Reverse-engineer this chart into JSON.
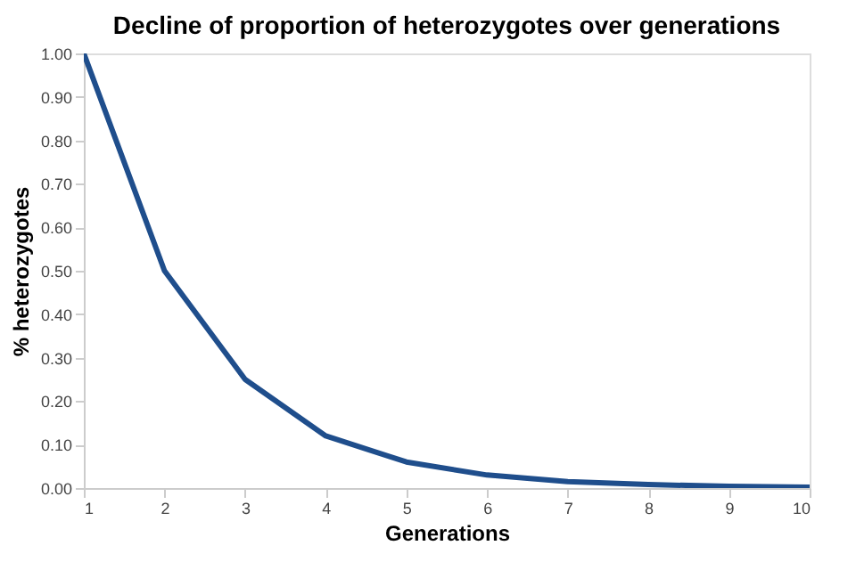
{
  "chart_data": {
    "type": "line",
    "title": "Decline of proportion of heterozygotes over generations",
    "xlabel": "Generations",
    "ylabel": "% heterozygotes",
    "x": [
      1,
      2,
      3,
      4,
      5,
      6,
      7,
      8,
      9,
      10
    ],
    "series": [
      {
        "color": "#1f4e8c",
        "values": [
          1.0,
          0.5,
          0.25,
          0.12,
          0.06,
          0.03,
          0.015,
          0.008,
          0.004,
          0.002
        ]
      }
    ],
    "xlim": [
      1,
      10
    ],
    "xticks": [
      1,
      2,
      3,
      4,
      5,
      6,
      7,
      8,
      9,
      10
    ],
    "ylim": [
      0,
      1
    ],
    "yticks": [
      {
        "value": 0,
        "label": "0.00"
      },
      {
        "value": 0.1,
        "label": "0.10"
      },
      {
        "value": 0.2,
        "label": "0.20"
      },
      {
        "value": 0.3,
        "label": "0.30"
      },
      {
        "value": 0.4,
        "label": "0.40"
      },
      {
        "value": 0.5,
        "label": "0.50"
      },
      {
        "value": 0.6,
        "label": "0.60"
      },
      {
        "value": 0.7,
        "label": "0.70"
      },
      {
        "value": 0.8,
        "label": "0.80"
      },
      {
        "value": 0.9,
        "label": "0.90"
      },
      {
        "value": 1,
        "label": "1.00"
      }
    ],
    "grid": false,
    "marker": "none",
    "line_style": "solid"
  }
}
